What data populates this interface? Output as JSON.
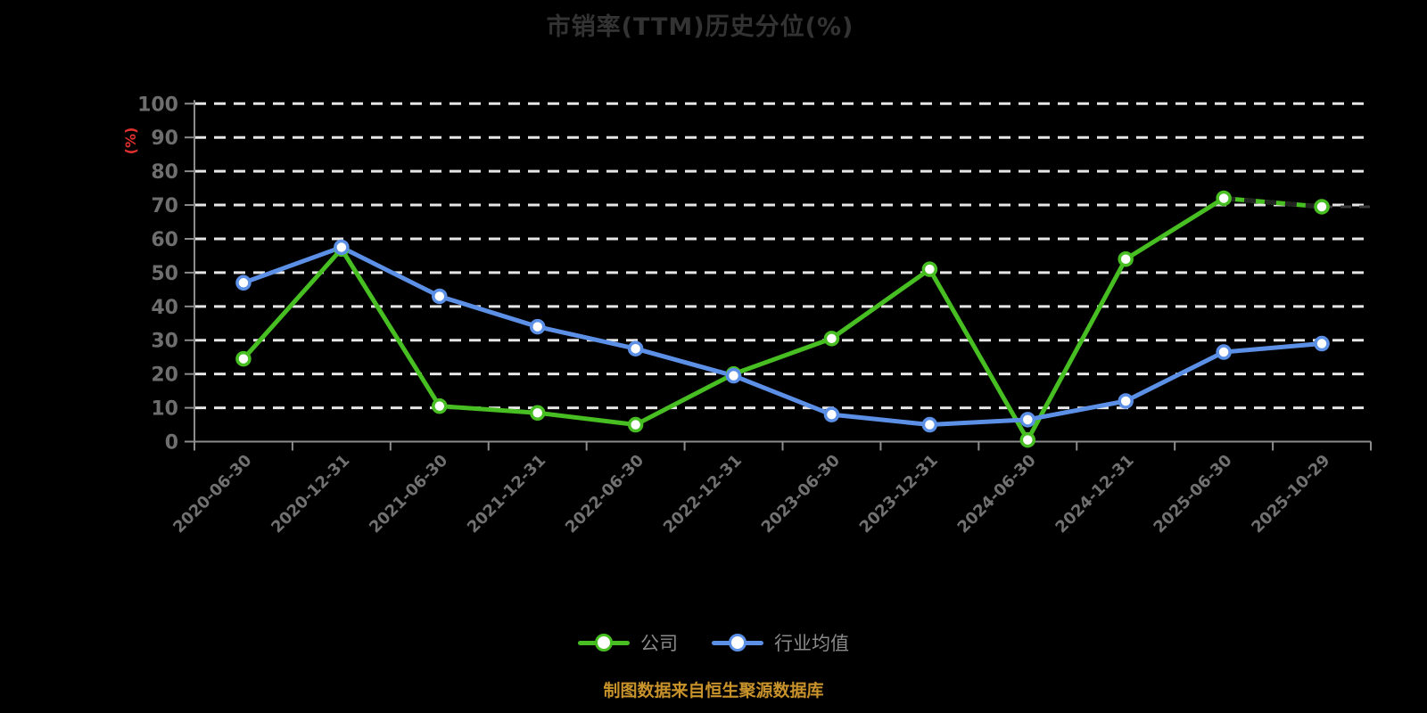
{
  "title": "市销率(TTM)历史分位(%)",
  "footer": {
    "note": "制图数据来自恒生聚源数据库"
  },
  "legend": {
    "items": [
      {
        "key": "company",
        "label": "公司",
        "color": "#47be21"
      },
      {
        "key": "industry-avg",
        "label": "行业均值",
        "color": "#5c90e6"
      }
    ]
  },
  "theme": {
    "background": "#000000",
    "grid_line": "#e6e6e6",
    "axis_line": "#8c8c8c",
    "y_tick_label": "#6e6e6e",
    "x_tick_label": "#717171",
    "title_color": "#333333",
    "legend_text": "#8a8a8a",
    "footer_color": "#c8932b",
    "ylabel_color": "#e03030",
    "overlay_dash": "#222222",
    "marker_fill": "#ffffff"
  },
  "chart_data": {
    "type": "line",
    "title": "市销率(TTM)历史分位(%)",
    "xlabel": "",
    "ylabel": "(%)",
    "ylim": [
      0,
      100
    ],
    "yticks": [
      0,
      10,
      20,
      30,
      40,
      50,
      60,
      70,
      80,
      90,
      100
    ],
    "grid": "dashed-horizontal",
    "legend_position": "bottom",
    "categories": [
      "2020-06-30",
      "2020-12-31",
      "2021-06-30",
      "2021-12-31",
      "2022-06-30",
      "2022-12-31",
      "2023-06-30",
      "2023-12-31",
      "2024-06-30",
      "2024-12-31",
      "2025-06-30",
      "2025-10-29"
    ],
    "series": [
      {
        "key": "company",
        "name": "公司",
        "color": "#47be21",
        "values": [
          24.5,
          57,
          10.5,
          8.5,
          5,
          20,
          30.5,
          51,
          0.5,
          54,
          72,
          69.5
        ],
        "overlay": {
          "style": "black-dashed",
          "from_index": 10,
          "extend_to_right": true
        }
      },
      {
        "key": "industry-avg",
        "name": "行业均值",
        "color": "#5c90e6",
        "values": [
          47,
          57.5,
          43,
          34,
          27.5,
          19.5,
          8,
          5,
          6.5,
          12,
          26.5,
          29
        ]
      }
    ]
  }
}
